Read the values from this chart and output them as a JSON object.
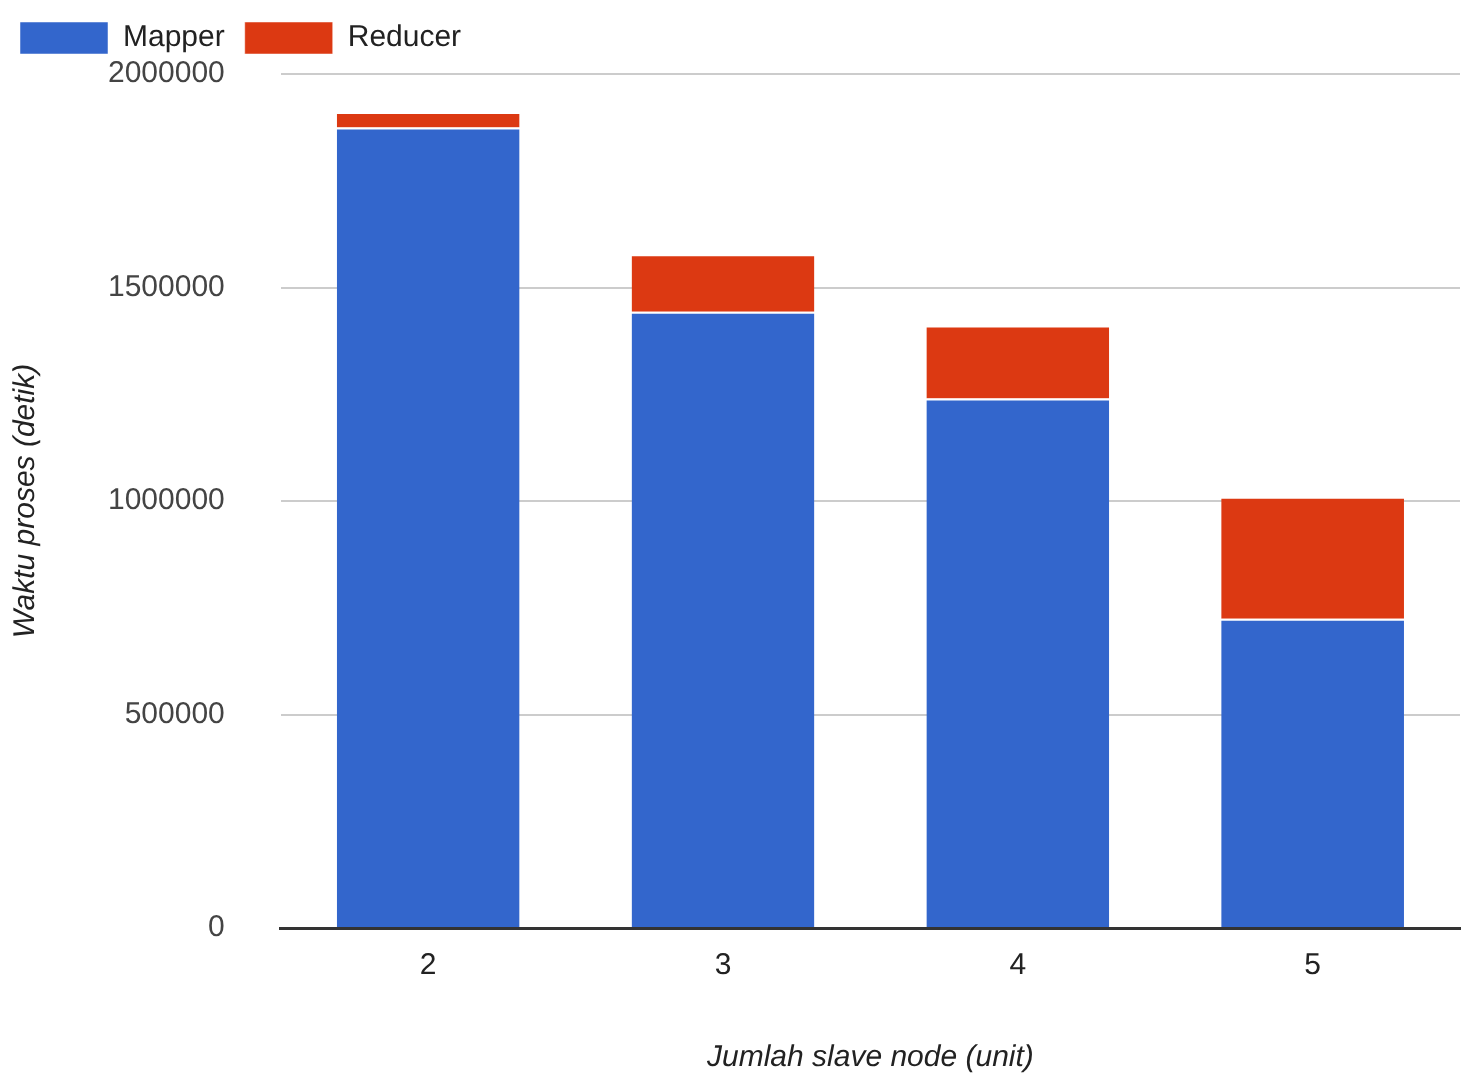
{
  "chart_data": {
    "type": "bar",
    "stacked": true,
    "categories": [
      "2",
      "3",
      "4",
      "5"
    ],
    "series": [
      {
        "name": "Mapper",
        "color": "#3366cc",
        "values": [
          1875000,
          1443000,
          1240000,
          724000
        ]
      },
      {
        "name": "Reducer",
        "color": "#dc3912",
        "values": [
          36000,
          135000,
          171000,
          286000
        ]
      }
    ],
    "xlabel": "Jumlah slave node (unit)",
    "ylabel": "Waktu proses (detik)",
    "ylim": [
      0,
      2000000
    ],
    "yticks": [
      0,
      500000,
      1000000,
      1500000,
      2000000
    ],
    "grid": "y",
    "legend": "top left"
  }
}
